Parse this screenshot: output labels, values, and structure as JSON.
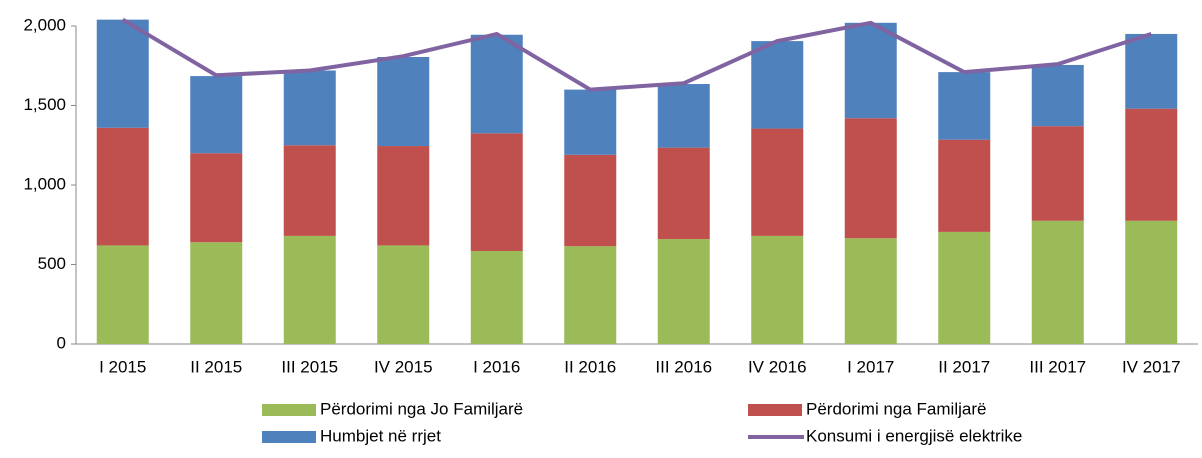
{
  "chart_data": {
    "type": "stacked-bar-line",
    "categories": [
      "I 2015",
      "II 2015",
      "III 2015",
      "IV 2015",
      "I 2016",
      "II 2016",
      "III 2016",
      "IV 2016",
      "I 2017",
      "II 2017",
      "III 2017",
      "IV 2017"
    ],
    "series": [
      {
        "name": "Përdorimi nga Jo Familjarë",
        "color": "#9bbb59",
        "kind": "bar",
        "values": [
          620,
          640,
          680,
          620,
          585,
          615,
          660,
          680,
          665,
          705,
          775,
          775
        ]
      },
      {
        "name": "Përdorimi nga Familjarë",
        "color": "#c0504d",
        "kind": "bar",
        "values": [
          740,
          560,
          570,
          625,
          740,
          575,
          575,
          675,
          755,
          580,
          595,
          705
        ]
      },
      {
        "name": "Humbjet në rrjet",
        "color": "#4f81bd",
        "kind": "bar",
        "values": [
          680,
          485,
          470,
          560,
          620,
          410,
          400,
          550,
          600,
          425,
          385,
          470
        ]
      },
      {
        "name": "Konsumi i energjisë elektrike",
        "color": "#8064a2",
        "kind": "line",
        "values": [
          2040,
          1690,
          1720,
          1810,
          1950,
          1600,
          1640,
          1905,
          2020,
          1710,
          1760,
          1950
        ]
      }
    ],
    "ylim": [
      0,
      2000
    ],
    "yticks": [
      0,
      500,
      {
        "value": 1000,
        "label": "1,000"
      },
      {
        "value": 1500,
        "label": "1,500"
      },
      {
        "value": 2000,
        "label": "2,000"
      }
    ],
    "grid": false,
    "legend": "bottom"
  }
}
